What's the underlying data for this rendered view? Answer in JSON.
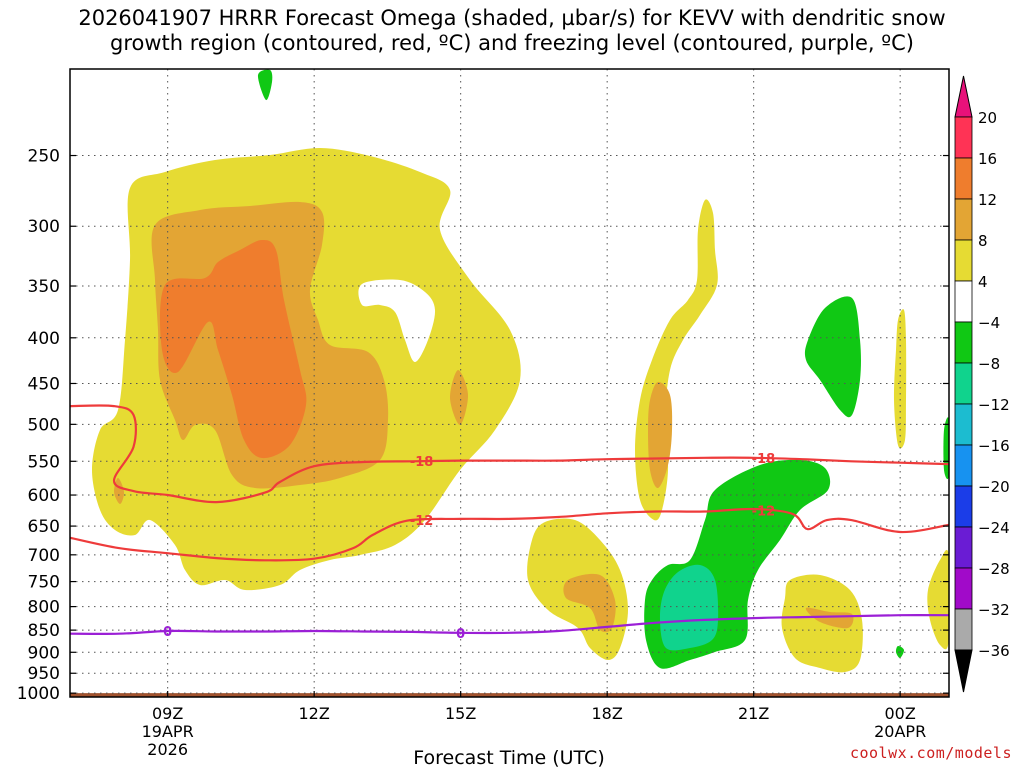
{
  "chart_data": {
    "type": "heatmap",
    "title_line1": "2026041907 HRRR Forecast Omega (shaded, µbar/s) for KEVV with dendritic snow",
    "title_line2": "growth region (contoured, red, ºC) and freezing level (contoured, purple, ºC)",
    "xlabel": "Forecast Time (UTC)",
    "x_ticks": [
      {
        "hour": 9,
        "label": "09Z",
        "sub1": "19APR",
        "sub2": "2026"
      },
      {
        "hour": 12,
        "label": "12Z",
        "sub1": "",
        "sub2": ""
      },
      {
        "hour": 15,
        "label": "15Z",
        "sub1": "",
        "sub2": ""
      },
      {
        "hour": 18,
        "label": "18Z",
        "sub1": "",
        "sub2": ""
      },
      {
        "hour": 21,
        "label": "21Z",
        "sub1": "",
        "sub2": ""
      },
      {
        "hour": 24,
        "label": "00Z",
        "sub1": "20APR",
        "sub2": ""
      }
    ],
    "xlim_hours": [
      7,
      25
    ],
    "y_ticks": [
      250,
      300,
      350,
      400,
      450,
      500,
      550,
      600,
      650,
      700,
      750,
      800,
      850,
      900,
      950,
      1000
    ],
    "ylim_hpa": [
      200,
      1010
    ],
    "y_scale": "pressure",
    "grid": true,
    "colorbar": {
      "levels": [
        20,
        16,
        12,
        8,
        4,
        -4,
        -8,
        -12,
        -16,
        -20,
        -24,
        -28,
        -32,
        -36
      ],
      "colors": [
        "#ff3355",
        "#ef7d2d",
        "#e3a534",
        "#e6db33",
        "#ffffff",
        "#10c814",
        "#10d38d",
        "#1cbcd0",
        "#1792f0",
        "#1b3de8",
        "#6a1cd4",
        "#a10ac9",
        "#aaaaaa"
      ],
      "top_arrow_color": "#e8117a",
      "bottom_arrow_color": "#000000"
    },
    "contour_labels": {
      "dgz_upper": "-18",
      "dgz_lower": "-12",
      "freezing": "0"
    },
    "contour_colors": {
      "dgz": "#ee3b3b",
      "freezing": "#9b1fd6"
    },
    "terrain_color": "#a0522d",
    "series": [
      {
        "name": "-18",
        "points": [
          [
            7,
            477
          ],
          [
            7.9,
            477
          ],
          [
            8.3,
            488
          ],
          [
            8.3,
            530
          ],
          [
            7.9,
            578
          ],
          [
            8.3,
            594
          ],
          [
            9,
            600
          ],
          [
            10,
            611
          ],
          [
            11,
            596
          ],
          [
            11.3,
            580
          ],
          [
            12,
            557
          ],
          [
            13,
            551
          ],
          [
            14,
            550
          ],
          [
            15,
            549
          ],
          [
            16,
            549
          ],
          [
            17,
            549
          ],
          [
            18,
            547
          ],
          [
            19,
            546
          ],
          [
            20,
            545
          ],
          [
            21,
            545
          ],
          [
            22,
            547
          ],
          [
            23,
            550
          ],
          [
            24,
            552
          ],
          [
            25,
            554
          ]
        ]
      },
      {
        "name": "-12",
        "points": [
          [
            7,
            670
          ],
          [
            8,
            688
          ],
          [
            9,
            697
          ],
          [
            10,
            706
          ],
          [
            11,
            710
          ],
          [
            12,
            707
          ],
          [
            12.8,
            688
          ],
          [
            13.2,
            665
          ],
          [
            13.9,
            641
          ],
          [
            15,
            638
          ],
          [
            16,
            638
          ],
          [
            17,
            635
          ],
          [
            18,
            629
          ],
          [
            19,
            626
          ],
          [
            20,
            626
          ],
          [
            21,
            622
          ],
          [
            21.8,
            630
          ],
          [
            22.1,
            655
          ],
          [
            22.5,
            640
          ],
          [
            23,
            640
          ],
          [
            24,
            660
          ],
          [
            25,
            648
          ]
        ]
      },
      {
        "name": "0",
        "points": [
          [
            7,
            858
          ],
          [
            8,
            858
          ],
          [
            9,
            852
          ],
          [
            10,
            853
          ],
          [
            11,
            853
          ],
          [
            12,
            852
          ],
          [
            13,
            853
          ],
          [
            14,
            854
          ],
          [
            15,
            856
          ],
          [
            16,
            856
          ],
          [
            17,
            852
          ],
          [
            18,
            843
          ],
          [
            19,
            834
          ],
          [
            20,
            828
          ],
          [
            21,
            824
          ],
          [
            22,
            822
          ],
          [
            23,
            820
          ],
          [
            24,
            818
          ],
          [
            25,
            818
          ]
        ]
      }
    ]
  },
  "credit": "coolwx.com/models"
}
